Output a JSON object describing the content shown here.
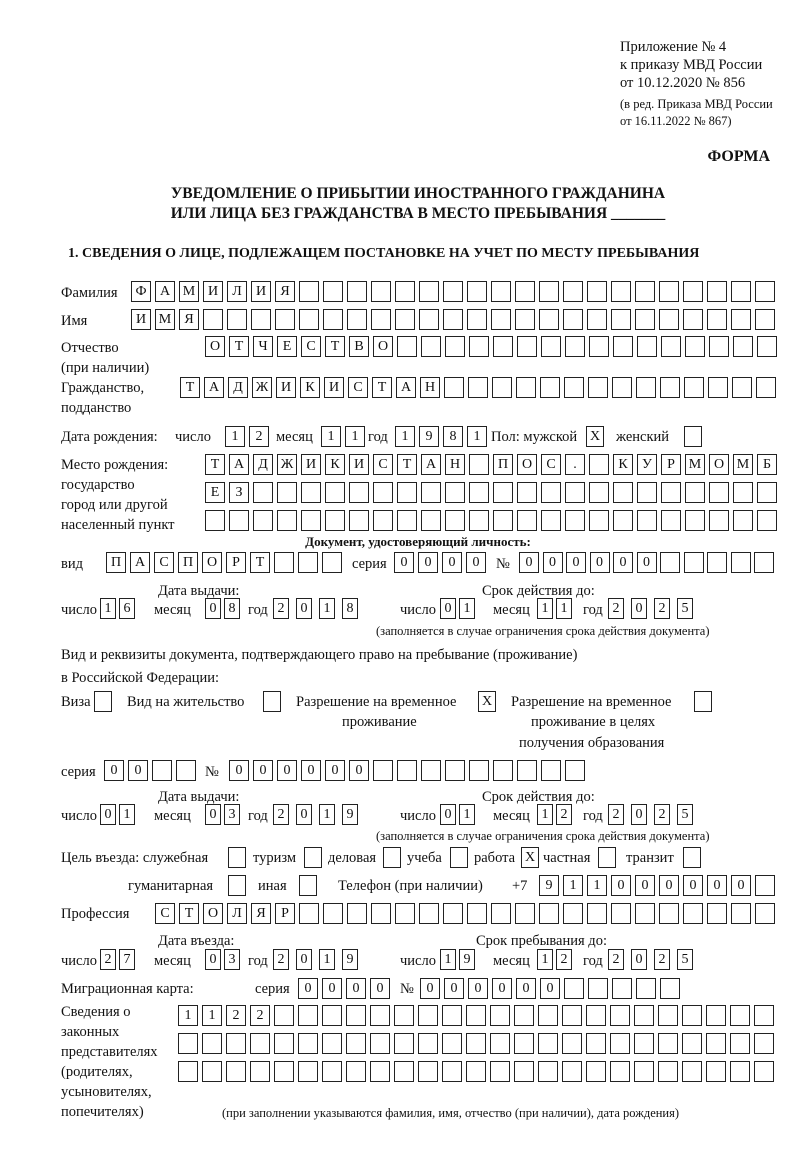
{
  "header": {
    "appendix": "Приложение № 4",
    "order_line": "к приказу МВД России",
    "order_date": "от 10.12.2020 № 856",
    "edition_line": "(в ред. Приказа МВД России",
    "edition_date": "от 16.11.2022 № 867)",
    "form_label": "ФОРМА",
    "title_line1": "УВЕДОМЛЕНИЕ О ПРИБЫТИИ ИНОСТРАННОГО ГРАЖДАНИНА",
    "title_line2": "ИЛИ ЛИЦА БЕЗ ГРАЖДАНСТВА В МЕСТО ПРЕБЫВАНИЯ _______",
    "section1": "1. СВЕДЕНИЯ О ЛИЦЕ, ПОДЛЕЖАЩЕМ ПОСТАНОВКЕ НА УЧЕТ ПО МЕСТУ ПРЕБЫВАНИЯ"
  },
  "labels": {
    "surname": "Фамилия",
    "name": "Имя",
    "patronymic": "Отчество",
    "patronymic_note": "(при наличии)",
    "citizenship": "Гражданство,",
    "citizenship2": "подданство",
    "birth_date": "Дата рождения:",
    "day": "число",
    "month": "месяц",
    "year": "год",
    "sex": "Пол: мужской",
    "female": "женский",
    "birth_place": "Место рождения:",
    "birth_place2": "государство",
    "birth_place3": "город или другой",
    "birth_place4": "населенный пункт",
    "id_doc": "Документ, удостоверяющий личность:",
    "kind": "вид",
    "series": "серия",
    "number": "№",
    "issue_date": "Дата выдачи:",
    "valid_until": "Срок действия до:",
    "validity_note": "(заполняется в случае ограничения срока действия документа)",
    "stay_doc": "Вид и реквизиты документа, подтверждающего право на пребывание (проживание)",
    "stay_doc2": "в Российской Федерации:",
    "visa": "Виза",
    "residence": "Вид на жительство",
    "temp_res": "Разрешение на временное",
    "temp_res2": "проживание",
    "temp_res_edu": "Разрешение на временное",
    "temp_res_edu2": "проживание в целях",
    "temp_res_edu3": "получения образования",
    "purpose": "Цель въезда: служебная",
    "tourism": "туризм",
    "business": "деловая",
    "study": "учеба",
    "work": "работа",
    "private": "частная",
    "transit": "транзит",
    "humanitarian": "гуманитарная",
    "other": "иная",
    "phone": "Телефон (при наличии)",
    "phone_prefix": "+7",
    "profession": "Профессия",
    "entry_date": "Дата въезда:",
    "stay_until": "Срок пребывания до:",
    "migration_card": "Миграционная карта:",
    "reps1": "Сведения о",
    "reps2": "законных",
    "reps3": "представителях",
    "reps4": "(родителях,",
    "reps5": "усыновителях,",
    "reps6": "попечителях)",
    "reps_note": "(при заполнении указываются фамилия, имя, отчество (при наличии), дата рождения)"
  },
  "person": {
    "surname": "ФАМИЛИЯ",
    "name": "ИМЯ",
    "patronymic": "ОТЧЕСТВО",
    "citizenship": "ТАДЖИКИСТАН",
    "birth_day": "12",
    "birth_month": "11",
    "birth_year": "1981",
    "male": "X",
    "female": "",
    "birth_place_1": "ТАДЖИКИСТАН ПОС. КУРМОМБ",
    "birth_place_2": "ЕЗ",
    "birth_place_3": ""
  },
  "id_document": {
    "kind": "ПАСПОРТ",
    "series": "0000",
    "number": "000000",
    "issue_day": "16",
    "issue_month": "08",
    "issue_year": "2018",
    "valid_day": "01",
    "valid_month": "11",
    "valid_year": "2025"
  },
  "stay_document": {
    "visa": "",
    "residence": "",
    "temp_res": "X",
    "temp_res_edu": "",
    "series": "00",
    "number": "000000",
    "issue_day": "01",
    "issue_month": "03",
    "issue_year": "2019",
    "valid_day": "01",
    "valid_month": "12",
    "valid_year": "2025"
  },
  "purpose": {
    "official": "",
    "tourism": "",
    "business": "",
    "study": "",
    "work": "X",
    "private": "",
    "transit": "",
    "humanitarian": "",
    "other": ""
  },
  "phone": "911000000",
  "profession": "СТОЛЯР",
  "entry": {
    "day": "27",
    "month": "03",
    "year": "2019",
    "until_day": "19",
    "until_month": "12",
    "until_year": "2025"
  },
  "migration_card": {
    "series": "0000",
    "number": "000000"
  },
  "representatives": {
    "line1": "1122",
    "line2": "",
    "line3": ""
  }
}
